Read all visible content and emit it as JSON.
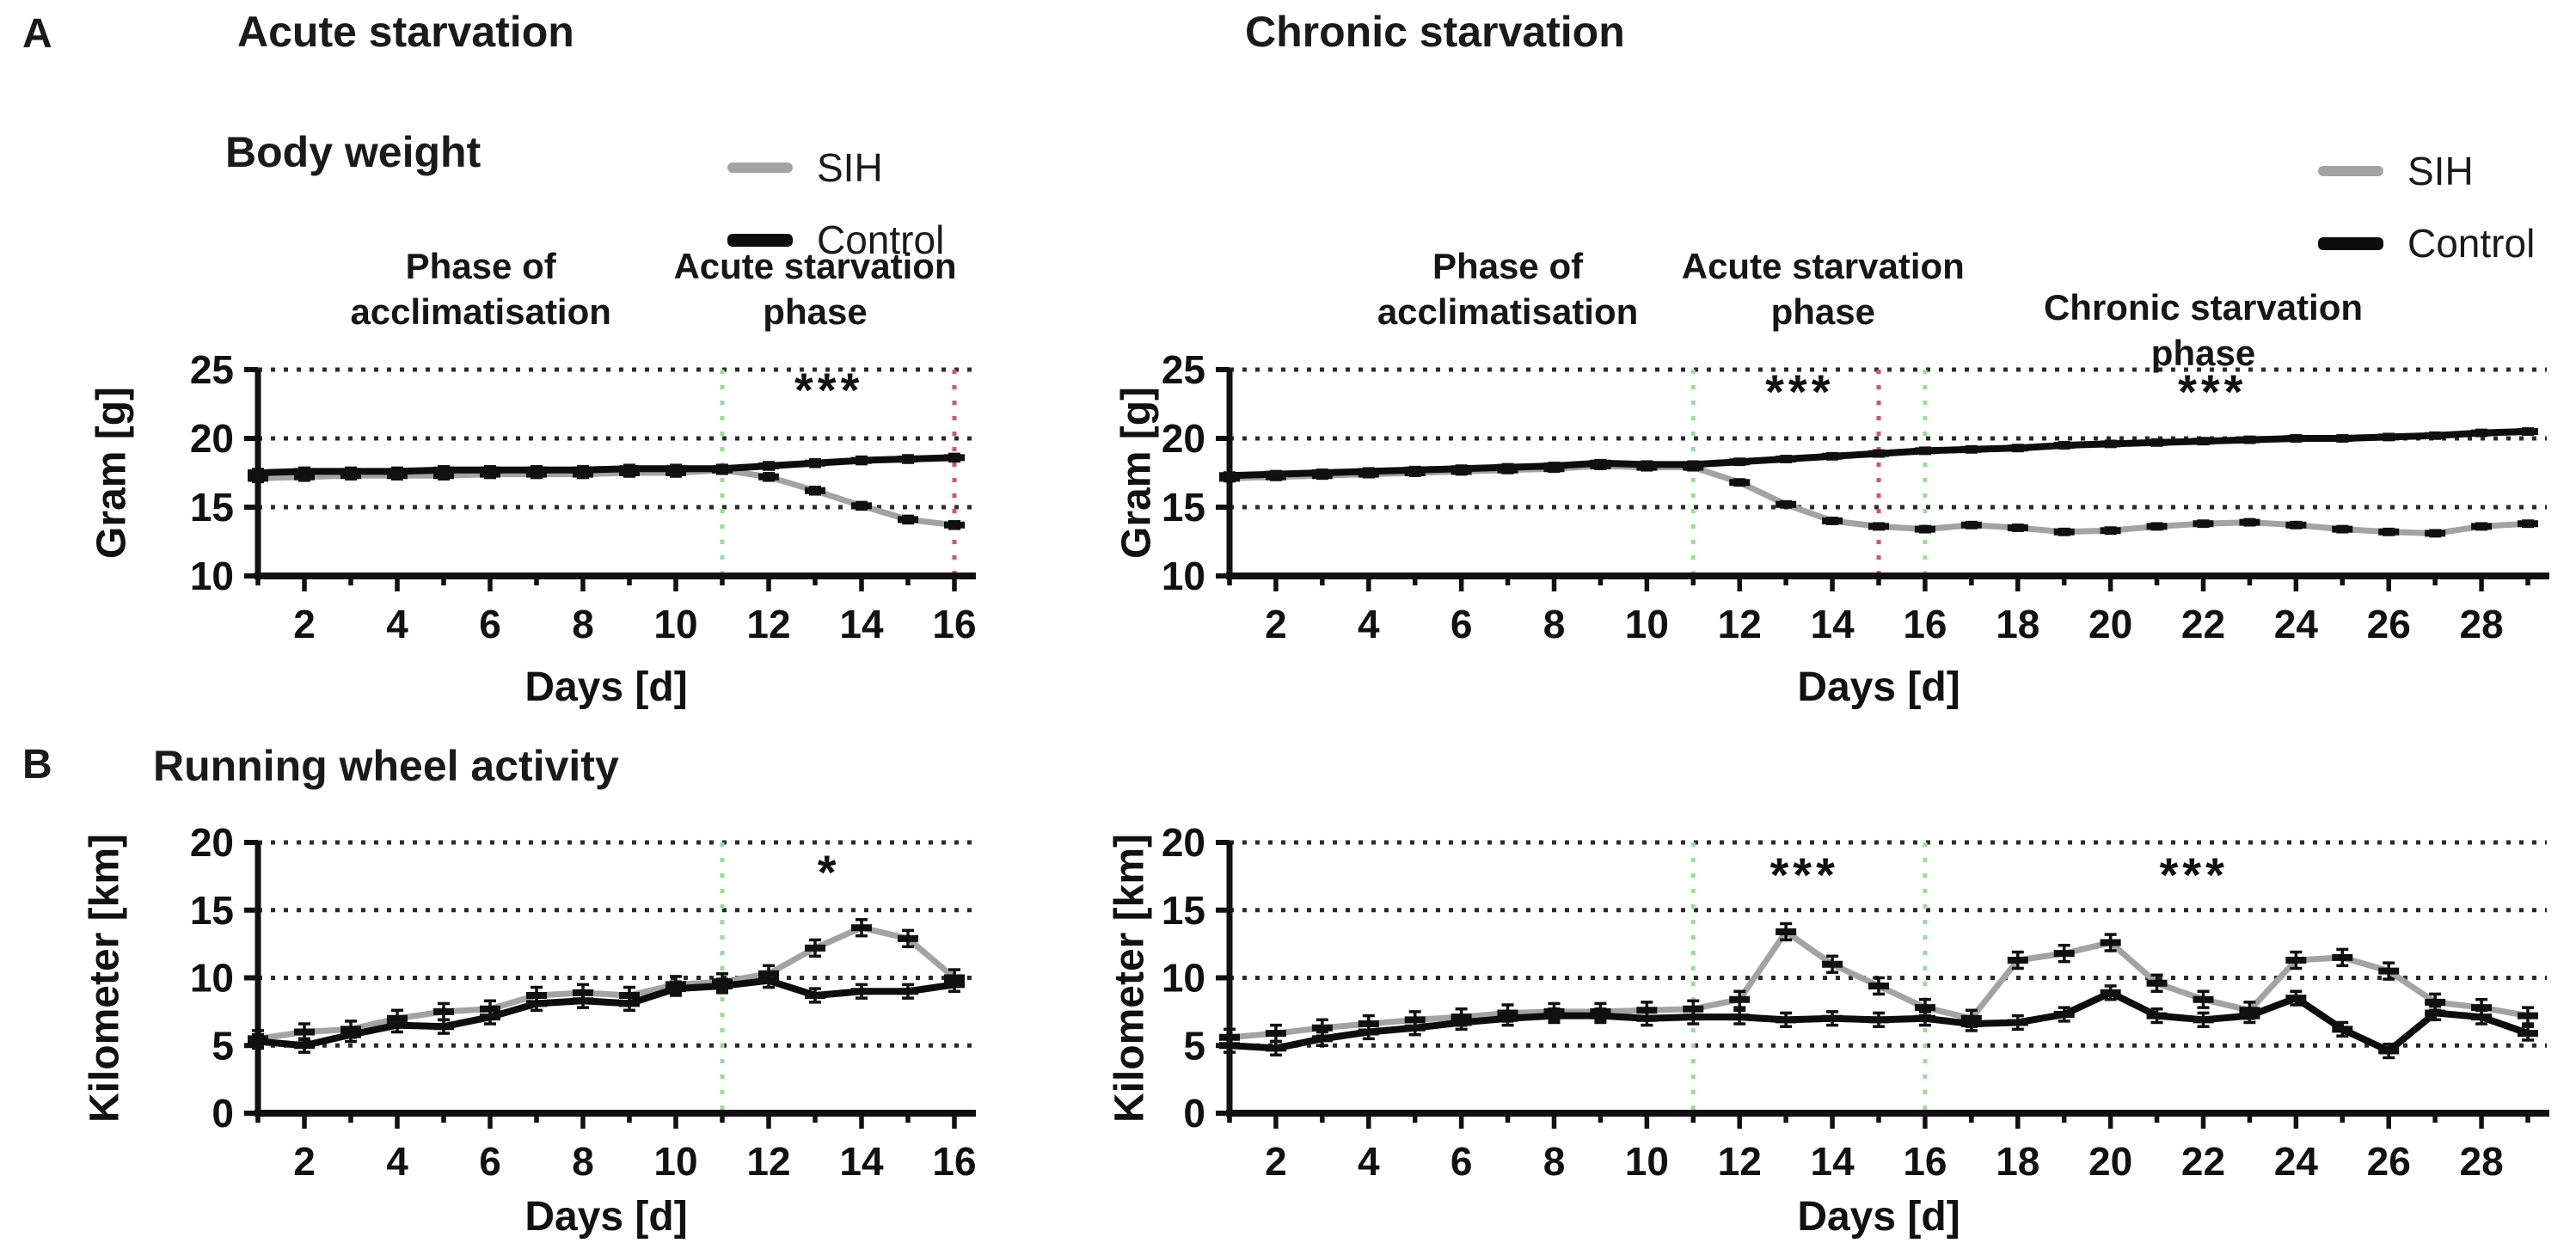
{
  "page": {
    "panel_a": "A",
    "panel_b": "B",
    "columns": [
      "Acute starvation",
      "Chronic starvation"
    ],
    "row_titles": [
      "Body weight",
      "Running wheel activity"
    ],
    "legend": {
      "entries": [
        {
          "label": "SIH",
          "color": "#a3a3a3"
        },
        {
          "label": "Control",
          "color": "#0d0d0d"
        }
      ]
    },
    "colors": {
      "sih": "#a3a3a3",
      "control": "#0d0d0d",
      "phase_start_line": "#95e095",
      "phase_end_line": "#e0506a",
      "grid": "#2b2b2b"
    }
  },
  "chart_data": [
    {
      "id": "body-weight-acute",
      "type": "line",
      "xlabel": "Days [d]",
      "ylabel": "Gram [g]",
      "xlim": [
        1,
        16
      ],
      "ylim": [
        10,
        25
      ],
      "xticks": [
        2,
        4,
        6,
        8,
        10,
        12,
        14,
        16
      ],
      "yticks": [
        10,
        15,
        20,
        25
      ],
      "gridlines": [
        15,
        20,
        25
      ],
      "x": [
        1,
        2,
        3,
        4,
        5,
        6,
        7,
        8,
        9,
        10,
        11,
        12,
        13,
        14,
        15,
        16
      ],
      "series": [
        {
          "name": "SIH",
          "color": "#a3a3a3",
          "err": 0.25,
          "values": [
            17.1,
            17.2,
            17.3,
            17.3,
            17.3,
            17.4,
            17.4,
            17.4,
            17.5,
            17.5,
            17.7,
            17.2,
            16.2,
            15.1,
            14.1,
            13.7
          ]
        },
        {
          "name": "Control",
          "color": "#0d0d0d",
          "err": 0.25,
          "values": [
            17.5,
            17.6,
            17.6,
            17.6,
            17.7,
            17.7,
            17.7,
            17.7,
            17.8,
            17.8,
            17.8,
            18.0,
            18.2,
            18.4,
            18.5,
            18.6
          ]
        }
      ],
      "vlines": [
        {
          "x": 11,
          "color": "#95e095"
        },
        {
          "x": 16,
          "color": "#e0506a"
        }
      ],
      "annotations": [
        {
          "text": "***",
          "x": 13.3,
          "y": 23.3
        }
      ],
      "phases": [
        {
          "text": "Phase of\nacclimatisation",
          "x": 5.8
        },
        {
          "text": "Acute starvation\nphase",
          "x": 13.0
        }
      ]
    },
    {
      "id": "body-weight-chronic",
      "type": "line",
      "xlabel": "Days [d]",
      "ylabel": "Gram [g]",
      "xlim": [
        1,
        29
      ],
      "ylim": [
        10,
        25
      ],
      "xticks": [
        2,
        4,
        6,
        8,
        10,
        12,
        14,
        16,
        18,
        20,
        22,
        24,
        26,
        28
      ],
      "yticks": [
        10,
        15,
        20,
        25
      ],
      "gridlines": [
        15,
        20,
        25
      ],
      "x": [
        1,
        2,
        3,
        4,
        5,
        6,
        7,
        8,
        9,
        10,
        11,
        12,
        13,
        14,
        15,
        16,
        17,
        18,
        19,
        20,
        21,
        22,
        23,
        24,
        25,
        26,
        27,
        28,
        29
      ],
      "series": [
        {
          "name": "SIH",
          "color": "#a3a3a3",
          "err": 0.2,
          "values": [
            17.1,
            17.2,
            17.3,
            17.4,
            17.5,
            17.6,
            17.7,
            17.8,
            18.0,
            17.9,
            17.9,
            16.8,
            15.2,
            14.0,
            13.6,
            13.4,
            13.7,
            13.5,
            13.2,
            13.3,
            13.6,
            13.8,
            13.9,
            13.7,
            13.4,
            13.2,
            13.1,
            13.6,
            13.8
          ]
        },
        {
          "name": "Control",
          "color": "#0d0d0d",
          "err": 0.2,
          "values": [
            17.3,
            17.4,
            17.5,
            17.6,
            17.7,
            17.8,
            17.9,
            18.0,
            18.2,
            18.1,
            18.1,
            18.3,
            18.5,
            18.7,
            18.9,
            19.1,
            19.2,
            19.3,
            19.5,
            19.6,
            19.7,
            19.8,
            19.9,
            20.0,
            20.0,
            20.1,
            20.2,
            20.4,
            20.5
          ]
        }
      ],
      "vlines": [
        {
          "x": 11,
          "color": "#95e095"
        },
        {
          "x": 15,
          "color": "#e0506a"
        },
        {
          "x": 16,
          "color": "#95e095"
        }
      ],
      "annotations": [
        {
          "text": "***",
          "x": 13.3,
          "y": 23.2
        },
        {
          "text": "***",
          "x": 22.2,
          "y": 23.2
        }
      ],
      "phases": [
        {
          "text": "Phase of\nacclimatisation",
          "x": 7.0
        },
        {
          "text": "Acute starvation\nphase",
          "x": 13.8
        },
        {
          "text": "Chronic starvation phase",
          "x": 22.0
        }
      ]
    },
    {
      "id": "running-wheel-acute",
      "type": "line",
      "xlabel": "Days [d]",
      "ylabel": "Kilometer [km]",
      "xlim": [
        1,
        16
      ],
      "ylim": [
        0,
        20
      ],
      "xticks": [
        2,
        4,
        6,
        8,
        10,
        12,
        14,
        16
      ],
      "yticks": [
        0,
        5,
        10,
        15,
        20
      ],
      "gridlines": [
        5,
        10,
        15,
        20
      ],
      "x": [
        1,
        2,
        3,
        4,
        5,
        6,
        7,
        8,
        9,
        10,
        11,
        12,
        13,
        14,
        15,
        16
      ],
      "series": [
        {
          "name": "SIH",
          "color": "#a3a3a3",
          "err": 0.6,
          "values": [
            5.5,
            6.0,
            6.2,
            7.0,
            7.5,
            7.7,
            8.7,
            8.9,
            8.7,
            9.5,
            9.7,
            10.3,
            12.2,
            13.7,
            12.9,
            10.0
          ]
        },
        {
          "name": "Control",
          "color": "#0d0d0d",
          "err": 0.5,
          "values": [
            5.3,
            5.0,
            5.8,
            6.5,
            6.4,
            7.1,
            8.1,
            8.3,
            8.1,
            9.2,
            9.4,
            9.8,
            8.7,
            9.0,
            9.0,
            9.5
          ]
        }
      ],
      "vlines": [
        {
          "x": 11,
          "color": "#95e095"
        }
      ],
      "annotations": [
        {
          "text": "*",
          "x": 13.3,
          "y": 17.6
        }
      ],
      "phases": []
    },
    {
      "id": "running-wheel-chronic",
      "type": "line",
      "xlabel": "Days [d]",
      "ylabel": "Kilometer [km]",
      "xlim": [
        1,
        29
      ],
      "ylim": [
        0,
        20
      ],
      "xticks": [
        2,
        4,
        6,
        8,
        10,
        12,
        14,
        16,
        18,
        20,
        22,
        24,
        26,
        28
      ],
      "yticks": [
        0,
        5,
        10,
        15,
        20
      ],
      "gridlines": [
        5,
        10,
        15,
        20
      ],
      "x": [
        1,
        2,
        3,
        4,
        5,
        6,
        7,
        8,
        9,
        10,
        11,
        12,
        13,
        14,
        15,
        16,
        17,
        18,
        19,
        20,
        21,
        22,
        23,
        24,
        25,
        26,
        27,
        28,
        29
      ],
      "series": [
        {
          "name": "SIH",
          "color": "#a3a3a3",
          "err": 0.6,
          "values": [
            5.6,
            5.9,
            6.3,
            6.6,
            6.9,
            7.1,
            7.4,
            7.5,
            7.5,
            7.6,
            7.7,
            8.4,
            13.4,
            11.0,
            9.4,
            7.8,
            7.0,
            11.3,
            11.8,
            12.6,
            9.6,
            8.4,
            7.6,
            11.3,
            11.5,
            10.5,
            8.2,
            7.8,
            7.2
          ]
        },
        {
          "name": "Control",
          "color": "#0d0d0d",
          "err": 0.5,
          "values": [
            5.0,
            4.8,
            5.5,
            6.0,
            6.3,
            6.7,
            7.0,
            7.2,
            7.2,
            7.0,
            7.1,
            7.1,
            6.9,
            7.0,
            6.9,
            7.0,
            6.6,
            6.7,
            7.3,
            8.9,
            7.2,
            6.9,
            7.2,
            8.5,
            6.2,
            4.6,
            7.4,
            7.1,
            5.9
          ]
        }
      ],
      "vlines": [
        {
          "x": 11,
          "color": "#95e095"
        },
        {
          "x": 16,
          "color": "#95e095"
        }
      ],
      "annotations": [
        {
          "text": "***",
          "x": 13.4,
          "y": 17.4
        },
        {
          "text": "***",
          "x": 21.8,
          "y": 17.4
        }
      ],
      "phases": []
    }
  ]
}
